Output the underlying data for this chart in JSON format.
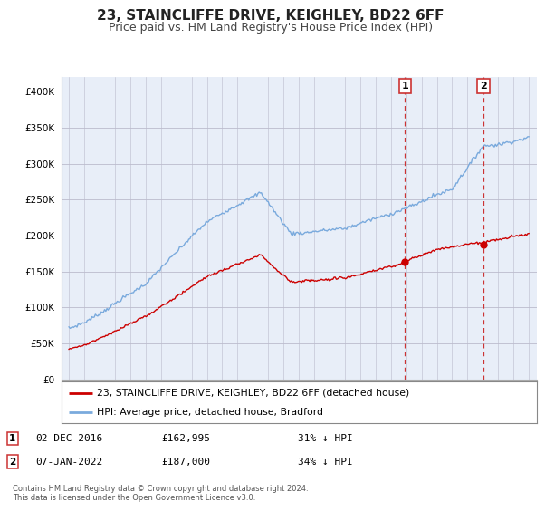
{
  "title": "23, STAINCLIFFE DRIVE, KEIGHLEY, BD22 6FF",
  "subtitle": "Price paid vs. HM Land Registry's House Price Index (HPI)",
  "legend_line1": "23, STAINCLIFFE DRIVE, KEIGHLEY, BD22 6FF (detached house)",
  "legend_line2": "HPI: Average price, detached house, Bradford",
  "footnote": "Contains HM Land Registry data © Crown copyright and database right 2024.\nThis data is licensed under the Open Government Licence v3.0.",
  "marker1_date": "02-DEC-2016",
  "marker1_price": "£162,995",
  "marker1_hpi": "31% ↓ HPI",
  "marker2_date": "07-JAN-2022",
  "marker2_price": "£187,000",
  "marker2_hpi": "34% ↓ HPI",
  "marker1_x": 2016.92,
  "marker2_x": 2022.03,
  "marker1_y": 162995,
  "marker2_y": 187000,
  "red_color": "#cc0000",
  "blue_color": "#7aaadd",
  "vline_color": "#cc3333",
  "bg_color": "#e8eef8",
  "background_color": "#ffffff",
  "ylim": [
    0,
    420000
  ],
  "xlim": [
    1994.5,
    2025.5
  ],
  "title_fontsize": 11,
  "subtitle_fontsize": 9
}
